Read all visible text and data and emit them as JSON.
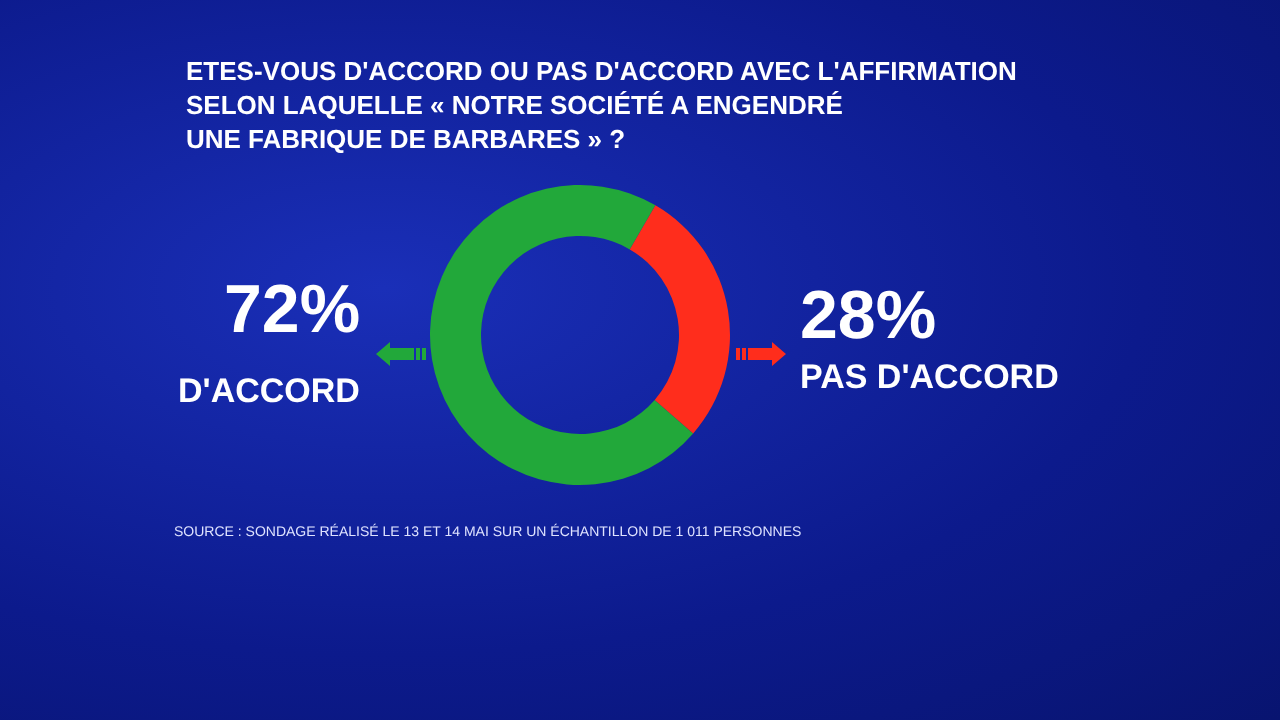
{
  "chart_data": {
    "type": "donut",
    "title": "ETES-VOUS D'ACCORD OU PAS D'ACCORD AVEC L'AFFIRMATION\nSELON LAQUELLE « NOTRE SOCIÉTÉ A ENGENDRÉ\nUNE FABRIQUE DE BARBARES » ?",
    "categories": [
      "D'ACCORD",
      "PAS D'ACCORD"
    ],
    "values": [
      72,
      28
    ],
    "colors": [
      "#22a83a",
      "#ff2d1c"
    ],
    "value_labels": [
      "72%",
      "28%"
    ],
    "annotations": [
      "SOURCE : SONDAGE RÉALISÉ LE 13 ET 14 MAI SUR UN ÉCHANTILLON DE 1 011 PERSONNES"
    ]
  }
}
